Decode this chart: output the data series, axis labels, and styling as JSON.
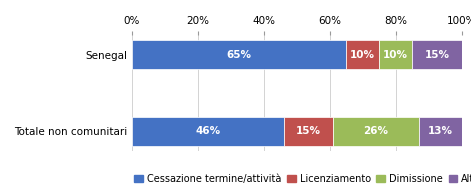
{
  "categories": [
    "Totale non comunitari",
    "Senegal"
  ],
  "series": {
    "Cessazione termine/attività": [
      46,
      65
    ],
    "Licenziamento": [
      15,
      10
    ],
    "Dimissione": [
      26,
      10
    ],
    "Altre": [
      13,
      15
    ]
  },
  "colors": {
    "Cessazione termine/attività": "#4472C4",
    "Licenziamento": "#C0504D",
    "Dimissione": "#9BBB59",
    "Altre": "#8064A2"
  },
  "labels": {
    "Cessazione termine/attività": [
      "46%",
      "65%"
    ],
    "Licenziamento": [
      "15%",
      "10%"
    ],
    "Dimissione": [
      "26%",
      "10%"
    ],
    "Altre": [
      "13%",
      "15%"
    ]
  },
  "xlim": [
    0,
    100
  ],
  "xticks": [
    0,
    20,
    40,
    60,
    80,
    100
  ],
  "xticklabels": [
    "0%",
    "20%",
    "40%",
    "60%",
    "80%",
    "100%"
  ],
  "background_color": "#FFFFFF",
  "bar_height": 0.38,
  "label_fontsize": 7.5,
  "tick_fontsize": 7.5,
  "legend_fontsize": 7.5
}
